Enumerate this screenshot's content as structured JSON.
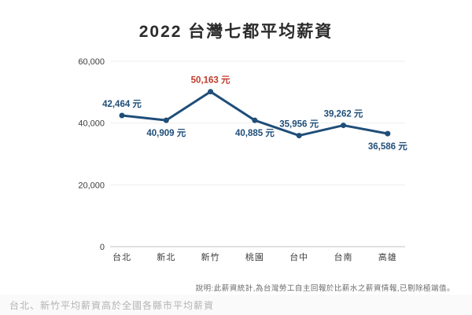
{
  "page": {
    "title": "2022 台灣七都平均薪資",
    "note": "說明:此薪資統計,為台灣勞工自主回報於比薪水之薪資情報,已剔除極端值。",
    "caption": "台北、新竹平均薪資高於全國各縣市平均薪資"
  },
  "chart_data": {
    "type": "line",
    "title": "2022 台灣七都平均薪資",
    "categories": [
      "台北",
      "新北",
      "新竹",
      "桃園",
      "台中",
      "台南",
      "高雄"
    ],
    "values": [
      42464,
      40909,
      50163,
      40885,
      35956,
      39262,
      36586
    ],
    "point_labels": [
      "42,464 元",
      "40,909 元",
      "50,163 元",
      "40,885 元",
      "35,956 元",
      "39,262 元",
      "36,586 元"
    ],
    "label_positions": [
      "above",
      "below",
      "above",
      "below",
      "above",
      "above",
      "below"
    ],
    "highlight_index": 2,
    "xlabel": "",
    "ylabel": "",
    "ylim": [
      0,
      60000
    ],
    "yticks": [
      0,
      20000,
      40000,
      60000
    ],
    "ytick_labels": [
      "0",
      "20,000",
      "40,000",
      "60,000"
    ],
    "grid": "horizontal",
    "legend": "none",
    "colors": {
      "line": "#1f4e79",
      "marker": "#1f4e79",
      "value_label": "#1f4e79",
      "highlight_label": "#c0392b",
      "grid": "#ededed",
      "axis": "#c2c2c2",
      "tick_text": "#3c3c3c",
      "title_text": "#2b2b2b",
      "note_text": "#6b6b6b",
      "caption_text": "#b3b3b3"
    }
  }
}
